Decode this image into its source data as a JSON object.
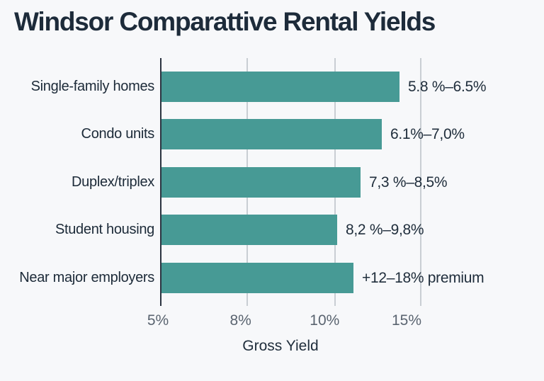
{
  "page": {
    "background": "#f7f8fa"
  },
  "chart_data": {
    "type": "bar",
    "orientation": "horizontal",
    "title": "Windsor Comparattive Rental Yields",
    "xlabel": "Gross Yield",
    "grid": true,
    "x_ticks": [
      {
        "label": "5%",
        "fraction": 0.0
      },
      {
        "label": "8%",
        "fraction": 0.3324
      },
      {
        "label": "10%",
        "fraction": 0.6703
      },
      {
        "label": "15%",
        "fraction": 1.0
      }
    ],
    "bars": [
      {
        "category": "Single-family homes",
        "value_label": "5.8 %–6.5%",
        "yield_range_pct": [
          5.8,
          6.5
        ],
        "length_fraction": 0.916
      },
      {
        "category": "Condo units",
        "value_label": "6.1%–7,0%",
        "yield_range_pct": [
          6.1,
          7.0
        ],
        "length_fraction": 0.847
      },
      {
        "category": "Duplex/triplex",
        "value_label": "7,3 %–8,5%",
        "yield_range_pct": [
          7.3,
          8.5
        ],
        "length_fraction": 0.766
      },
      {
        "category": "Student housing",
        "value_label": "8,2 %–9,8%",
        "yield_range_pct": [
          8.2,
          9.8
        ],
        "length_fraction": 0.676
      },
      {
        "category": "Near major employers",
        "value_label": "+12–18% premium",
        "premium_range_pct": [
          12,
          18
        ],
        "length_fraction": 0.738
      }
    ],
    "colors": {
      "bar": "#479a95",
      "title_text": "#1d2b3a",
      "category_text": "#1c2a38",
      "value_text": "#202e3c",
      "tick_text": "#5a6470",
      "axis_line": "#2b3340",
      "gridline": "#c9ced3",
      "background": "#f7f8fa"
    }
  }
}
